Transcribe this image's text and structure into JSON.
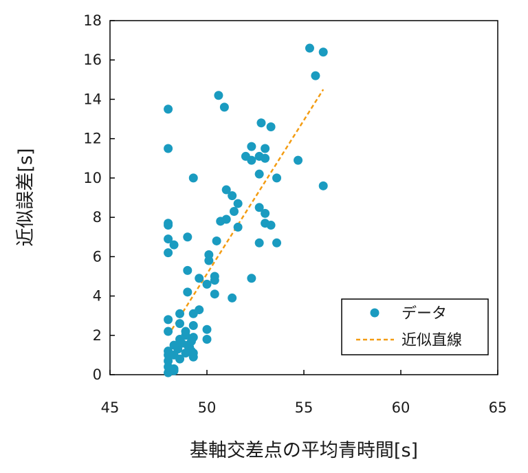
{
  "colors": {
    "point": "#1a9bc0",
    "fit_line": "#f39c12",
    "axis": "#000000"
  },
  "chart_data": {
    "type": "scatter",
    "xlabel": "基軸交差点の平均青時間[s]",
    "ylabel": "近似誤差[s]",
    "xlim": [
      45,
      65
    ],
    "ylim": [
      0,
      18
    ],
    "xticks": [
      45,
      50,
      55,
      60,
      65
    ],
    "yticks": [
      0,
      2,
      4,
      6,
      8,
      10,
      12,
      14,
      16,
      18
    ],
    "grid": false,
    "legend": {
      "placement": "lower-right",
      "entries": [
        "データ",
        "近似直線"
      ]
    },
    "series": [
      {
        "name": "データ",
        "kind": "points",
        "points": [
          [
            48.0,
            0.1
          ],
          [
            48.0,
            0.4
          ],
          [
            48.0,
            0.7
          ],
          [
            48.0,
            1.0
          ],
          [
            48.0,
            1.2
          ],
          [
            48.0,
            2.2
          ],
          [
            48.0,
            2.8
          ],
          [
            48.0,
            6.2
          ],
          [
            48.0,
            6.9
          ],
          [
            48.0,
            7.6
          ],
          [
            48.0,
            7.7
          ],
          [
            48.0,
            11.5
          ],
          [
            48.0,
            13.5
          ],
          [
            48.3,
            0.2
          ],
          [
            48.3,
            0.3
          ],
          [
            48.3,
            6.6
          ],
          [
            48.3,
            1.0
          ],
          [
            48.3,
            1.5
          ],
          [
            48.5,
            1.3
          ],
          [
            48.6,
            1.8
          ],
          [
            48.6,
            2.6
          ],
          [
            48.6,
            3.1
          ],
          [
            48.6,
            0.8
          ],
          [
            48.7,
            1.6
          ],
          [
            48.9,
            1.1
          ],
          [
            48.9,
            2.0
          ],
          [
            48.9,
            2.2
          ],
          [
            49.0,
            1.5
          ],
          [
            49.0,
            7.0
          ],
          [
            49.0,
            5.3
          ],
          [
            49.0,
            4.2
          ],
          [
            49.1,
            1.4
          ],
          [
            49.2,
            1.7
          ],
          [
            49.2,
            1.2
          ],
          [
            49.3,
            0.9
          ],
          [
            49.3,
            1.1
          ],
          [
            49.3,
            1.9
          ],
          [
            49.3,
            2.5
          ],
          [
            49.3,
            3.1
          ],
          [
            49.3,
            10.0
          ],
          [
            49.6,
            3.3
          ],
          [
            49.6,
            4.9
          ],
          [
            50.0,
            1.8
          ],
          [
            50.0,
            2.3
          ],
          [
            50.0,
            4.6
          ],
          [
            50.1,
            6.1
          ],
          [
            50.1,
            5.8
          ],
          [
            50.4,
            4.1
          ],
          [
            50.4,
            4.8
          ],
          [
            50.4,
            5.0
          ],
          [
            50.5,
            6.8
          ],
          [
            50.6,
            14.2
          ],
          [
            50.7,
            7.8
          ],
          [
            50.9,
            13.6
          ],
          [
            51.0,
            7.9
          ],
          [
            51.0,
            9.4
          ],
          [
            51.3,
            9.1
          ],
          [
            51.3,
            3.9
          ],
          [
            51.4,
            8.3
          ],
          [
            51.6,
            8.7
          ],
          [
            51.6,
            7.5
          ],
          [
            52.0,
            11.1
          ],
          [
            52.3,
            11.6
          ],
          [
            52.3,
            10.9
          ],
          [
            52.3,
            4.9
          ],
          [
            52.7,
            6.7
          ],
          [
            52.7,
            8.5
          ],
          [
            52.7,
            11.1
          ],
          [
            52.7,
            10.2
          ],
          [
            52.8,
            12.8
          ],
          [
            53.0,
            11.0
          ],
          [
            53.0,
            11.5
          ],
          [
            53.0,
            8.2
          ],
          [
            53.0,
            7.7
          ],
          [
            53.3,
            7.6
          ],
          [
            53.3,
            12.6
          ],
          [
            53.6,
            10.0
          ],
          [
            53.6,
            6.7
          ],
          [
            54.7,
            10.9
          ],
          [
            55.3,
            16.6
          ],
          [
            55.6,
            15.2
          ],
          [
            56.0,
            9.6
          ],
          [
            56.0,
            16.4
          ]
        ]
      },
      {
        "name": "近似直線",
        "kind": "line",
        "x": [
          48.0,
          56.0
        ],
        "y": [
          2.0,
          14.5
        ]
      }
    ]
  }
}
